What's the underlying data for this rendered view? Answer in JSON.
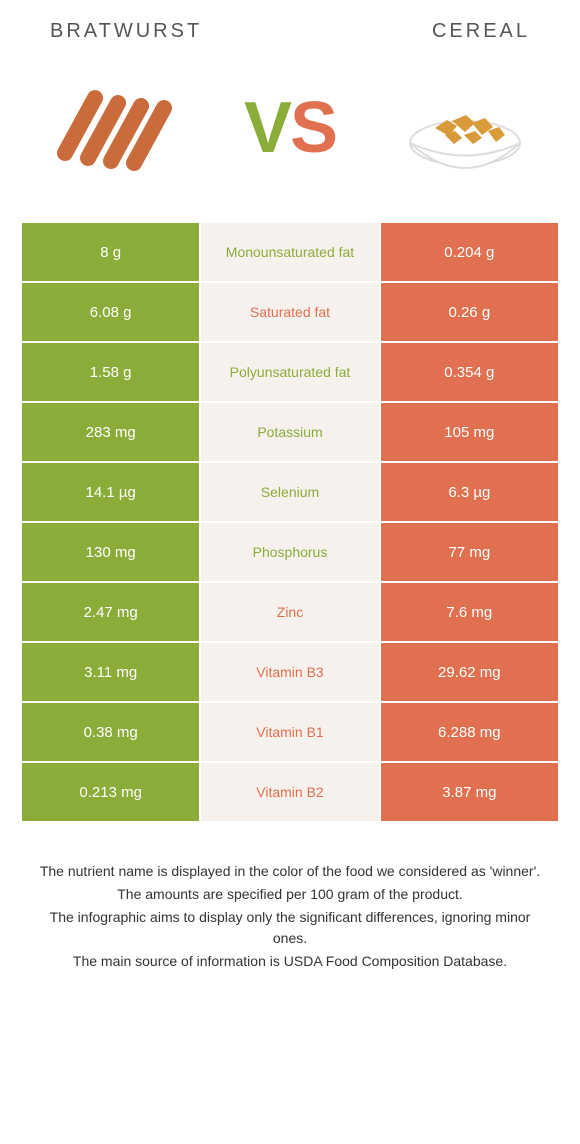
{
  "header": {
    "left": "Bratwurst",
    "right": "Cereal"
  },
  "vs": {
    "v": "V",
    "s": "S"
  },
  "colors": {
    "green": "#8aad3a",
    "orange": "#e0704f",
    "mid_bg": "#f7f1ed"
  },
  "rows": [
    {
      "left": "8 g",
      "label": "Monounsaturated fat",
      "winner": "green",
      "right": "0.204 g"
    },
    {
      "left": "6.08 g",
      "label": "Saturated fat",
      "winner": "orange",
      "right": "0.26 g"
    },
    {
      "left": "1.58 g",
      "label": "Polyunsaturated fat",
      "winner": "green",
      "right": "0.354 g"
    },
    {
      "left": "283 mg",
      "label": "Potassium",
      "winner": "green",
      "right": "105 mg"
    },
    {
      "left": "14.1 µg",
      "label": "Selenium",
      "winner": "green",
      "right": "6.3 µg"
    },
    {
      "left": "130 mg",
      "label": "Phosphorus",
      "winner": "green",
      "right": "77 mg"
    },
    {
      "left": "2.47 mg",
      "label": "Zinc",
      "winner": "orange",
      "right": "7.6 mg"
    },
    {
      "left": "3.11 mg",
      "label": "Vitamin B3",
      "winner": "orange",
      "right": "29.62 mg"
    },
    {
      "left": "0.38 mg",
      "label": "Vitamin B1",
      "winner": "orange",
      "right": "6.288 mg"
    },
    {
      "left": "0.213 mg",
      "label": "Vitamin B2",
      "winner": "orange",
      "right": "3.87 mg"
    }
  ],
  "footer": [
    "The nutrient name is displayed in the color of the food we considered as 'winner'.",
    "The amounts are specified per 100 gram of the product.",
    "The infographic aims to display only the significant differences, ignoring minor ones.",
    "The main source of information is USDA Food Composition Database."
  ]
}
